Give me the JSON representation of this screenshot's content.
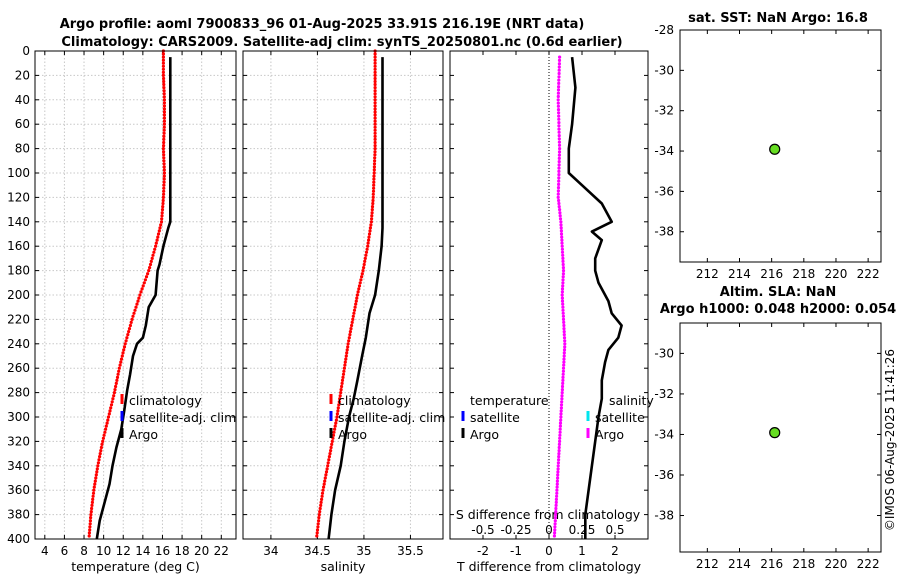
{
  "header": {
    "title_line1": "Argo profile: aoml 7900833_96 01-Aug-2025 33.91S 216.19E (NRT data)",
    "title_line2": "Climatology: CARS2009. Satellite-adj clim: synTS_20250801.nc (0.6d earlier)"
  },
  "watermark": "©IMOS 06-Aug-2025 11:41:26",
  "colors": {
    "climatology": "#ff0000",
    "satellite_adj": "#0000ff",
    "argo": "#000000",
    "salinity_diff": "#ff00ff",
    "satellite_salinity": "#00e5ee",
    "marker": "#66dd22"
  },
  "chart_data": [
    {
      "id": "temperature",
      "type": "line",
      "xlabel": "temperature (deg C)",
      "xlim": [
        3,
        23.5
      ],
      "ylim": [
        400,
        0
      ],
      "xticks": [
        4,
        6,
        8,
        10,
        12,
        14,
        16,
        18,
        20,
        22
      ],
      "yticks": [
        0,
        20,
        40,
        60,
        80,
        100,
        120,
        140,
        160,
        180,
        200,
        220,
        240,
        260,
        280,
        300,
        320,
        340,
        360,
        380,
        400
      ],
      "grid": true,
      "series": [
        {
          "name": "climatology",
          "color": "#ff0000",
          "style": "dots",
          "points": [
            [
              16.1,
              0
            ],
            [
              16.1,
              20
            ],
            [
              16.2,
              40
            ],
            [
              16.2,
              60
            ],
            [
              16.1,
              80
            ],
            [
              16.2,
              100
            ],
            [
              16.1,
              120
            ],
            [
              15.9,
              140
            ],
            [
              15.3,
              160
            ],
            [
              14.6,
              180
            ],
            [
              13.7,
              200
            ],
            [
              12.9,
              220
            ],
            [
              12.2,
              240
            ],
            [
              11.6,
              260
            ],
            [
              11.1,
              280
            ],
            [
              10.5,
              300
            ],
            [
              9.9,
              320
            ],
            [
              9.4,
              340
            ],
            [
              9.0,
              360
            ],
            [
              8.7,
              380
            ],
            [
              8.5,
              400
            ]
          ]
        },
        {
          "name": "satellite-adj. clim",
          "color": "#0000ff",
          "style": "line",
          "points": []
        },
        {
          "name": "Argo",
          "color": "#000000",
          "style": "line",
          "points": [
            [
              16.8,
              5
            ],
            [
              16.8,
              40
            ],
            [
              16.8,
              100
            ],
            [
              16.8,
              140
            ],
            [
              16.6,
              145
            ],
            [
              16.1,
              160
            ],
            [
              15.7,
              175
            ],
            [
              15.5,
              180
            ],
            [
              15.3,
              200
            ],
            [
              14.6,
              210
            ],
            [
              14.3,
              225
            ],
            [
              14.0,
              235
            ],
            [
              13.4,
              240
            ],
            [
              13.0,
              250
            ],
            [
              12.7,
              265
            ],
            [
              12.4,
              278
            ],
            [
              12.1,
              295
            ],
            [
              11.8,
              310
            ],
            [
              11.3,
              325
            ],
            [
              10.9,
              340
            ],
            [
              10.6,
              355
            ],
            [
              10.1,
              370
            ],
            [
              9.6,
              385
            ],
            [
              9.3,
              400
            ]
          ]
        }
      ],
      "legend": {
        "position": "inside-lower-right",
        "entries": [
          "climatology",
          "satellite-adj. clim",
          "Argo"
        ]
      }
    },
    {
      "id": "salinity",
      "type": "line",
      "xlabel": "salinity",
      "xlim": [
        33.7,
        35.85
      ],
      "ylim": [
        400,
        0
      ],
      "xticks": [
        34,
        34.5,
        35,
        35.5
      ],
      "grid": true,
      "series": [
        {
          "name": "climatology",
          "color": "#ff0000",
          "style": "dots",
          "points": [
            [
              35.12,
              0
            ],
            [
              35.12,
              20
            ],
            [
              35.12,
              40
            ],
            [
              35.12,
              60
            ],
            [
              35.12,
              80
            ],
            [
              35.11,
              100
            ],
            [
              35.1,
              120
            ],
            [
              35.08,
              140
            ],
            [
              35.04,
              160
            ],
            [
              34.99,
              180
            ],
            [
              34.93,
              200
            ],
            [
              34.88,
              220
            ],
            [
              34.83,
              240
            ],
            [
              34.79,
              260
            ],
            [
              34.75,
              280
            ],
            [
              34.71,
              300
            ],
            [
              34.66,
              320
            ],
            [
              34.61,
              340
            ],
            [
              34.56,
              360
            ],
            [
              34.52,
              380
            ],
            [
              34.49,
              400
            ]
          ]
        },
        {
          "name": "satellite-adj. clim",
          "color": "#0000ff",
          "style": "line",
          "points": []
        },
        {
          "name": "Argo",
          "color": "#000000",
          "style": "line",
          "points": [
            [
              35.2,
              5
            ],
            [
              35.2,
              50
            ],
            [
              35.2,
              100
            ],
            [
              35.2,
              145
            ],
            [
              35.19,
              160
            ],
            [
              35.16,
              180
            ],
            [
              35.12,
              200
            ],
            [
              35.06,
              215
            ],
            [
              35.02,
              235
            ],
            [
              34.98,
              250
            ],
            [
              34.93,
              270
            ],
            [
              34.89,
              285
            ],
            [
              34.84,
              300
            ],
            [
              34.79,
              320
            ],
            [
              34.75,
              340
            ],
            [
              34.69,
              360
            ],
            [
              34.65,
              380
            ],
            [
              34.62,
              400
            ]
          ]
        }
      ],
      "legend": {
        "position": "inside-lower-right",
        "entries": [
          "climatology",
          "satellite-adj. clim",
          "Argo"
        ]
      }
    },
    {
      "id": "difference",
      "type": "line",
      "xlabel": "T difference from climatology",
      "xlabel_top": "S difference from climatology",
      "xlim": [
        -3,
        3
      ],
      "ylim": [
        400,
        0
      ],
      "xticks_bottom": [
        -2,
        -1,
        0,
        1,
        2
      ],
      "xticks_bottom_labels": [
        "-2",
        "-1",
        "0",
        "1",
        "2"
      ],
      "xticks_top": [
        -0.5,
        -0.25,
        0,
        0.25,
        0.5
      ],
      "xticks_top_labels": [
        "-0.5",
        "-0.25",
        "0",
        "0.25",
        "0.5"
      ],
      "grid": false,
      "series": [
        {
          "name": "T difference (Argo)",
          "color": "#000000",
          "style": "line",
          "points": [
            [
              0.7,
              5
            ],
            [
              0.8,
              30
            ],
            [
              0.7,
              60
            ],
            [
              0.6,
              80
            ],
            [
              0.6,
              100
            ],
            [
              1.0,
              110
            ],
            [
              1.6,
              125
            ],
            [
              1.9,
              140
            ],
            [
              1.3,
              148
            ],
            [
              1.6,
              155
            ],
            [
              1.4,
              170
            ],
            [
              1.4,
              180
            ],
            [
              1.5,
              190
            ],
            [
              1.8,
              205
            ],
            [
              1.9,
              215
            ],
            [
              2.2,
              225
            ],
            [
              2.1,
              235
            ],
            [
              1.8,
              245
            ],
            [
              1.7,
              255
            ],
            [
              1.6,
              270
            ],
            [
              1.6,
              285
            ],
            [
              1.5,
              300
            ],
            [
              1.4,
              320
            ],
            [
              1.3,
              340
            ],
            [
              1.2,
              360
            ],
            [
              1.1,
              380
            ],
            [
              1.1,
              400
            ]
          ]
        },
        {
          "name": "S difference (Argo)",
          "color": "#ff00ff",
          "style": "dots",
          "points": [
            [
              0.08,
              5
            ],
            [
              0.07,
              40
            ],
            [
              0.08,
              80
            ],
            [
              0.07,
              120
            ],
            [
              0.09,
              140
            ],
            [
              0.1,
              160
            ],
            [
              0.11,
              180
            ],
            [
              0.1,
              200
            ],
            [
              0.11,
              220
            ],
            [
              0.12,
              240
            ],
            [
              0.11,
              260
            ],
            [
              0.1,
              280
            ],
            [
              0.09,
              300
            ],
            [
              0.08,
              320
            ],
            [
              0.07,
              340
            ],
            [
              0.06,
              360
            ],
            [
              0.05,
              380
            ],
            [
              0.04,
              400
            ]
          ]
        }
      ],
      "legend": {
        "temperature_header": "temperature",
        "salinity_header": "salinity",
        "temperature_entries": [
          "satellite",
          "Argo"
        ],
        "salinity_entries": [
          "satellite",
          "Argo"
        ]
      }
    },
    {
      "id": "sst_map",
      "type": "scatter",
      "title": "sat. SST: NaN Argo: 16.8",
      "xlim": [
        210.3,
        222.8
      ],
      "ylim": [
        -39.5,
        -28
      ],
      "xticks": [
        212,
        214,
        216,
        218,
        220,
        222
      ],
      "yticks": [
        -28,
        -30,
        -32,
        -34,
        -36,
        -38
      ],
      "grid": false,
      "points": [
        {
          "x": 216.19,
          "y": -33.91,
          "color": "#66dd22"
        }
      ]
    },
    {
      "id": "sla_map",
      "type": "scatter",
      "title_line1": "Altim. SLA: NaN",
      "title_line2": "Argo h1000: 0.048 h2000: 0.054",
      "xlim": [
        210.3,
        222.8
      ],
      "ylim": [
        -39.8,
        -28.5
      ],
      "xticks": [
        212,
        214,
        216,
        218,
        220,
        222
      ],
      "yticks": [
        -30,
        -32,
        -34,
        -36,
        -38
      ],
      "grid": false,
      "points": [
        {
          "x": 216.19,
          "y": -33.91,
          "color": "#66dd22"
        }
      ]
    }
  ]
}
